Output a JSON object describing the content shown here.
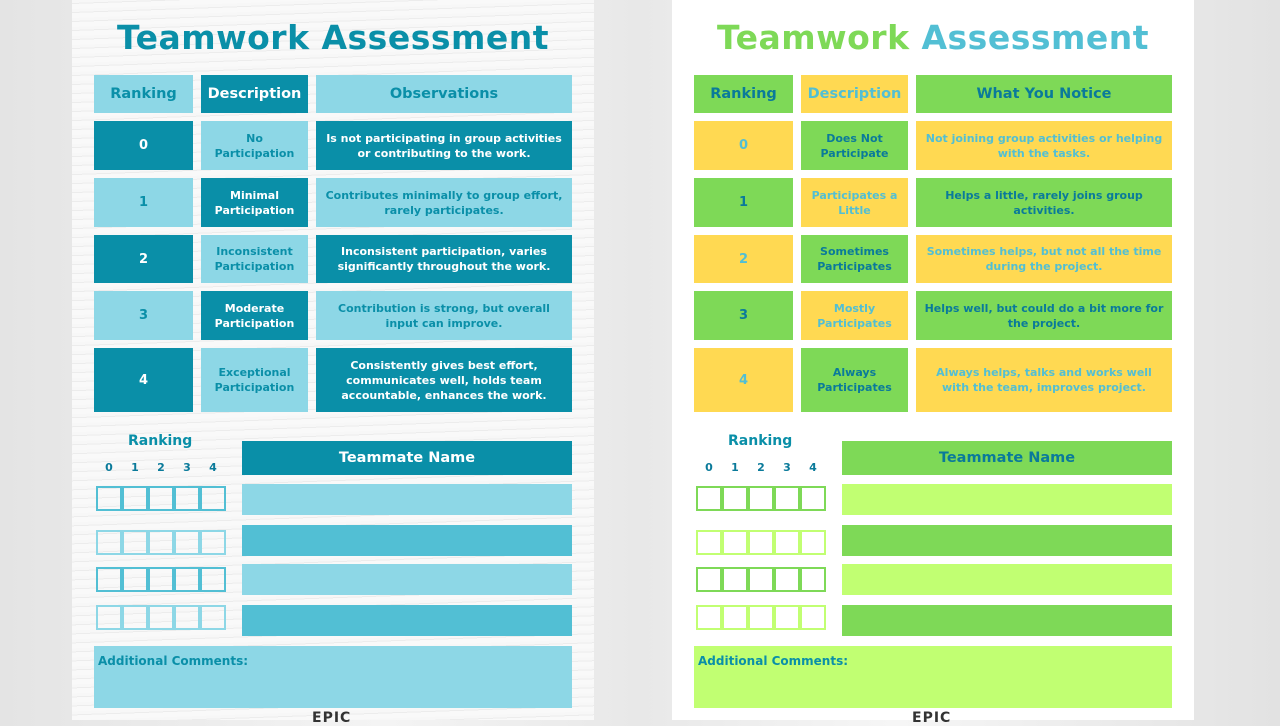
{
  "sheets": [
    {
      "title_parts": [
        "Teamwork ",
        "Assessment"
      ],
      "headers": [
        "Ranking",
        "Description",
        "Observations"
      ],
      "rows": [
        {
          "rank": "0",
          "desc": "No Participation",
          "text": "Is not participating in group activities or contributing to the work."
        },
        {
          "rank": "1",
          "desc": "Minimal Participation",
          "text": "Contributes minimally to group effort, rarely participates."
        },
        {
          "rank": "2",
          "desc": "Inconsistent Participation",
          "text": "Inconsistent participation, varies significantly throughout the work."
        },
        {
          "rank": "3",
          "desc": "Moderate Participation",
          "text": "Contribution is strong, but overall input can improve."
        },
        {
          "rank": "4",
          "desc": "Exceptional Participation",
          "text": "Consistently gives best effort, communicates well, holds team accountable, enhances the work."
        }
      ],
      "ranking_label": "Ranking",
      "digits": [
        "0",
        "1",
        "2",
        "3",
        "4"
      ],
      "name_header": "Teammate Name",
      "comments_label": "Additional Comments:",
      "logo": "EPIC",
      "colors": {
        "dark": "#0a8fa8",
        "light": "#8dd7e6",
        "mid": "#52bfd4"
      }
    },
    {
      "title_parts": [
        "Teamwork ",
        "Assessment"
      ],
      "headers": [
        "Ranking",
        "Description",
        "What You Notice"
      ],
      "rows": [
        {
          "rank": "0",
          "desc": "Does Not Participate",
          "text": "Not joining group activities or helping with the tasks."
        },
        {
          "rank": "1",
          "desc": "Participates a Little",
          "text": "Helps a little, rarely joins group activities."
        },
        {
          "rank": "2",
          "desc": "Sometimes Participates",
          "text": "Sometimes helps, but not all the time during the project."
        },
        {
          "rank": "3",
          "desc": "Mostly Participates",
          "text": "Helps well, but could do a bit more for the project."
        },
        {
          "rank": "4",
          "desc": "Always Participates",
          "text": "Always helps, talks and works well with the team, improves project."
        }
      ],
      "ranking_label": "Ranking",
      "digits": [
        "0",
        "1",
        "2",
        "3",
        "4"
      ],
      "name_header": "Teammate Name",
      "comments_label": "Additional Comments:",
      "logo": "EPIC",
      "colors": {
        "green": "#7ed957",
        "yellow": "#ffd952",
        "lime": "#c1ff72",
        "text_blue": "#52bfd4",
        "text_dark": "#0a7a9a"
      }
    }
  ]
}
